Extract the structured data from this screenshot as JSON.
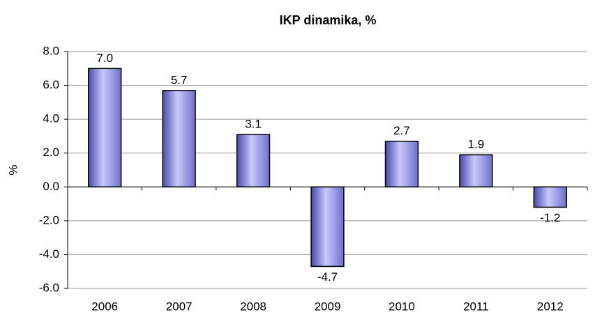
{
  "chart_data": {
    "type": "bar",
    "title": "IKP dinamika, %",
    "y_label": "%",
    "categories": [
      "2006",
      "2007",
      "2008",
      "2009",
      "2010",
      "2011",
      "2012"
    ],
    "values": [
      7.0,
      5.7,
      3.1,
      -4.7,
      2.7,
      1.9,
      -1.2
    ],
    "value_labels": [
      "7.0",
      "5.7",
      "3.1",
      "-4.7",
      "2.7",
      "1.9",
      "-1.2"
    ],
    "color": "#9999ff",
    "ylim": [
      -6,
      8
    ],
    "yticks": [
      {
        "value": -6,
        "label": "-6.0"
      },
      {
        "value": -4,
        "label": "-4.0"
      },
      {
        "value": -2,
        "label": "-2.0"
      },
      {
        "value": 0,
        "label": "0.0"
      },
      {
        "value": 2,
        "label": "2.0"
      },
      {
        "value": 4,
        "label": "4.0"
      },
      {
        "value": 6,
        "label": "6.0"
      },
      {
        "value": 8,
        "label": "8.0"
      }
    ],
    "grid": true
  }
}
